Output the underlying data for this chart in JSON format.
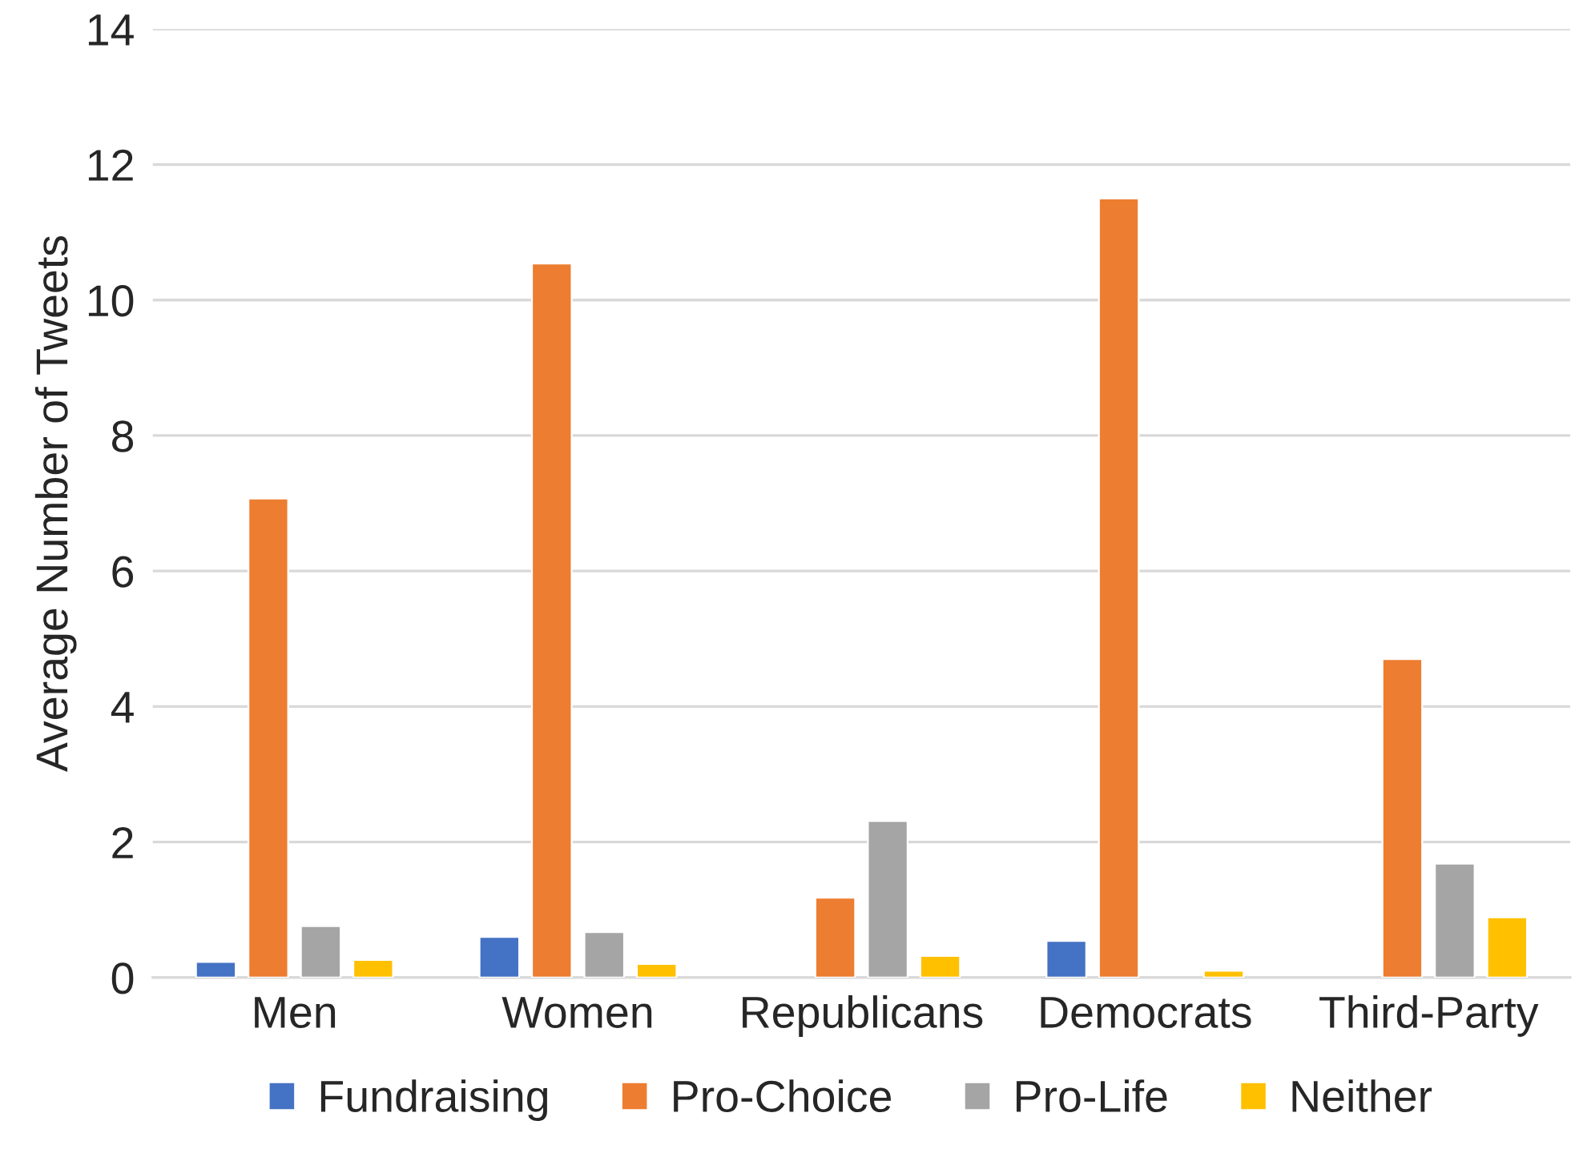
{
  "chart_data": {
    "type": "bar",
    "ylabel": "Average Number of Tweets",
    "categories": [
      "Men",
      "Women",
      "Republicans",
      "Democrats",
      "Third-Party"
    ],
    "series": [
      {
        "name": "Fundraising",
        "color": "#4472c4",
        "values": [
          0.23,
          0.6,
          null,
          0.54,
          null
        ]
      },
      {
        "name": "Pro-Choice",
        "color": "#ed7d31",
        "values": [
          7.07,
          10.54,
          1.18,
          11.5,
          4.7
        ]
      },
      {
        "name": "Pro-Life",
        "color": "#a5a5a5",
        "values": [
          0.76,
          0.67,
          2.31,
          null,
          1.68
        ]
      },
      {
        "name": "Neither",
        "color": "#ffc000",
        "values": [
          0.26,
          0.2,
          0.32,
          0.1,
          0.89
        ]
      }
    ],
    "ylim": [
      0,
      14
    ],
    "yticks": [
      0,
      2,
      4,
      6,
      8,
      10,
      12,
      14
    ],
    "grid": "y",
    "legend": "bottom"
  }
}
